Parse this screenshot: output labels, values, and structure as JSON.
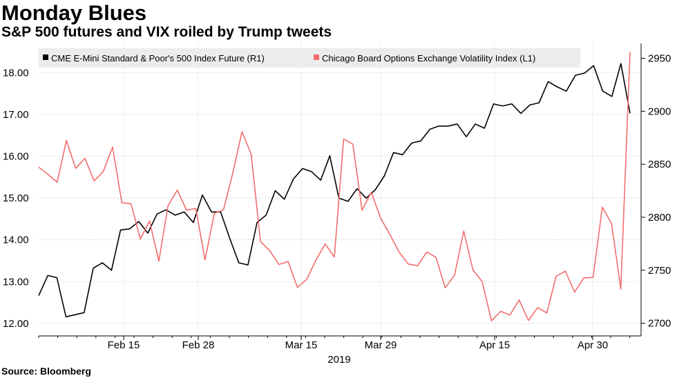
{
  "header": {
    "title": "Monday Blues",
    "subtitle": "S&P 500 futures and VIX roiled by Trump tweets"
  },
  "footer": {
    "source": "Source: Bloomberg"
  },
  "colors": {
    "futures_line": "#000000",
    "vix_line": "#f26d6d",
    "grid": "#c8c8c8",
    "axis": "#000000",
    "legend_bg": "#ececec"
  },
  "chart_data": {
    "type": "line",
    "year_label": "2019",
    "x_ticks": [
      "Feb 15",
      "Feb 28",
      "Mar 15",
      "Mar 29",
      "Apr 15",
      "Apr 30"
    ],
    "y_left": {
      "ticks": [
        "12.00",
        "13.00",
        "14.00",
        "15.00",
        "16.00",
        "17.00",
        "18.00"
      ],
      "range": [
        11.7,
        18.7
      ]
    },
    "y_right": {
      "ticks": [
        "2700",
        "2750",
        "2800",
        "2850",
        "2900",
        "2950"
      ],
      "range": [
        2688,
        2964
      ]
    },
    "grid": true,
    "legend_position": "top",
    "series": [
      {
        "name": "CME E-Mini Standard & Poor's 500 Index Future  (R1)",
        "axis": "right",
        "color": "#000000",
        "values": [
          2726,
          2745,
          2743,
          2706,
          2708,
          2710,
          2752,
          2757,
          2750,
          2788,
          2789,
          2796,
          2785,
          2803,
          2807,
          2802,
          2805,
          2795,
          2821,
          2805,
          2805,
          2780,
          2757,
          2755,
          2795,
          2802,
          2825,
          2817,
          2836,
          2846,
          2843,
          2835,
          2858,
          2818,
          2815,
          2827,
          2818,
          2826,
          2839,
          2861,
          2859,
          2870,
          2872,
          2883,
          2886,
          2886,
          2888,
          2876,
          2888,
          2884,
          2907,
          2905,
          2907,
          2898,
          2906,
          2908,
          2928,
          2923,
          2919,
          2934,
          2936,
          2943,
          2919,
          2914,
          2945,
          2898
        ]
      },
      {
        "name": "Chicago Board Options Exchange Volatility Index  (L1)",
        "axis": "left",
        "color": "#f26d6d",
        "values": [
          15.74,
          15.57,
          15.38,
          16.38,
          15.71,
          15.95,
          15.41,
          15.64,
          16.22,
          14.89,
          14.86,
          14.02,
          14.45,
          13.49,
          14.82,
          15.19,
          14.71,
          14.75,
          13.52,
          14.63,
          14.72,
          15.59,
          16.59,
          16.05,
          13.96,
          13.74,
          13.41,
          13.48,
          12.86,
          13.05,
          13.51,
          13.9,
          13.59,
          16.41,
          16.29,
          14.71,
          15.14,
          14.52,
          14.13,
          13.71,
          13.42,
          13.38,
          13.71,
          13.58,
          12.85,
          13.15,
          14.21,
          13.28,
          13.0,
          12.06,
          12.29,
          12.2,
          12.56,
          12.07,
          12.38,
          12.25,
          13.13,
          13.25,
          12.75,
          13.09,
          13.1,
          14.78,
          14.39,
          12.82,
          18.49
        ]
      }
    ]
  }
}
